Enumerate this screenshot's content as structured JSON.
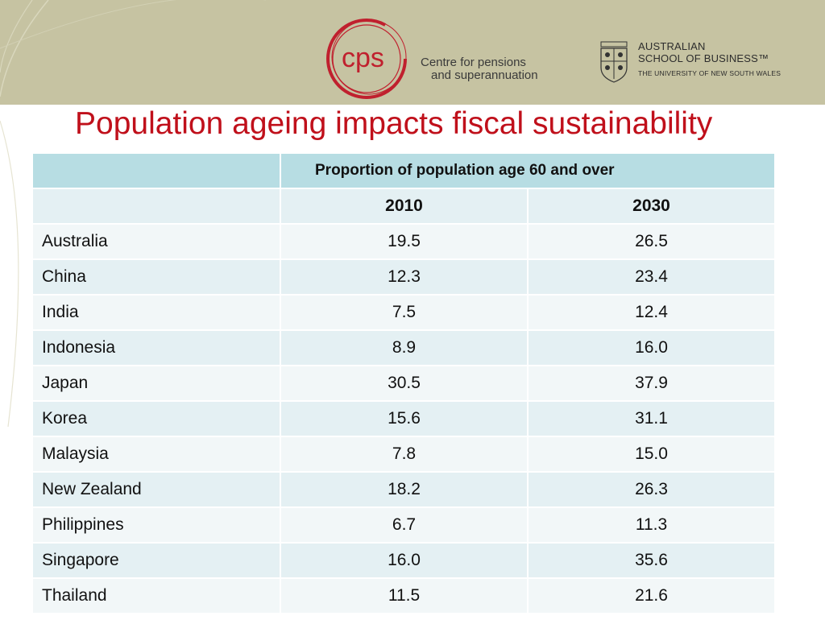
{
  "header": {
    "cps_logo_text": "cps",
    "cps_name_line1": "Centre for pensions",
    "cps_name_line2": "and superannuation",
    "asb_line1": "AUSTRALIAN",
    "asb_line2": "SCHOOL OF BUSINESS™",
    "asb_line3": "THE UNIVERSITY OF NEW SOUTH WALES"
  },
  "title": "Population ageing impacts fiscal sustainability",
  "table": {
    "group_header": "Proportion of population age 60 and over",
    "columns": [
      "",
      "2010",
      "2030"
    ],
    "rows": [
      {
        "country": "Australia",
        "y2010": "19.5",
        "y2030": "26.5"
      },
      {
        "country": "China",
        "y2010": "12.3",
        "y2030": "23.4"
      },
      {
        "country": "India",
        "y2010": "7.5",
        "y2030": "12.4"
      },
      {
        "country": "Indonesia",
        "y2010": "8.9",
        "y2030": "16.0"
      },
      {
        "country": "Japan",
        "y2010": "30.5",
        "y2030": "37.9"
      },
      {
        "country": "Korea",
        "y2010": "15.6",
        "y2030": "31.1"
      },
      {
        "country": "Malaysia",
        "y2010": "7.8",
        "y2030": "15.0"
      },
      {
        "country": "New Zealand",
        "y2010": "18.2",
        "y2030": "26.3"
      },
      {
        "country": "Philippines",
        "y2010": "6.7",
        "y2030": "11.3"
      },
      {
        "country": "Singapore",
        "y2010": "16.0",
        "y2030": "35.6"
      },
      {
        "country": "Thailand",
        "y2010": "11.5",
        "y2030": "21.6"
      }
    ]
  },
  "colors": {
    "banner": "#c6c3a2",
    "title": "#c0101b",
    "logo": "#c0202e",
    "header_row": "#b7dde3",
    "row_light": "#f2f7f8",
    "row_dark": "#e4f0f3"
  }
}
